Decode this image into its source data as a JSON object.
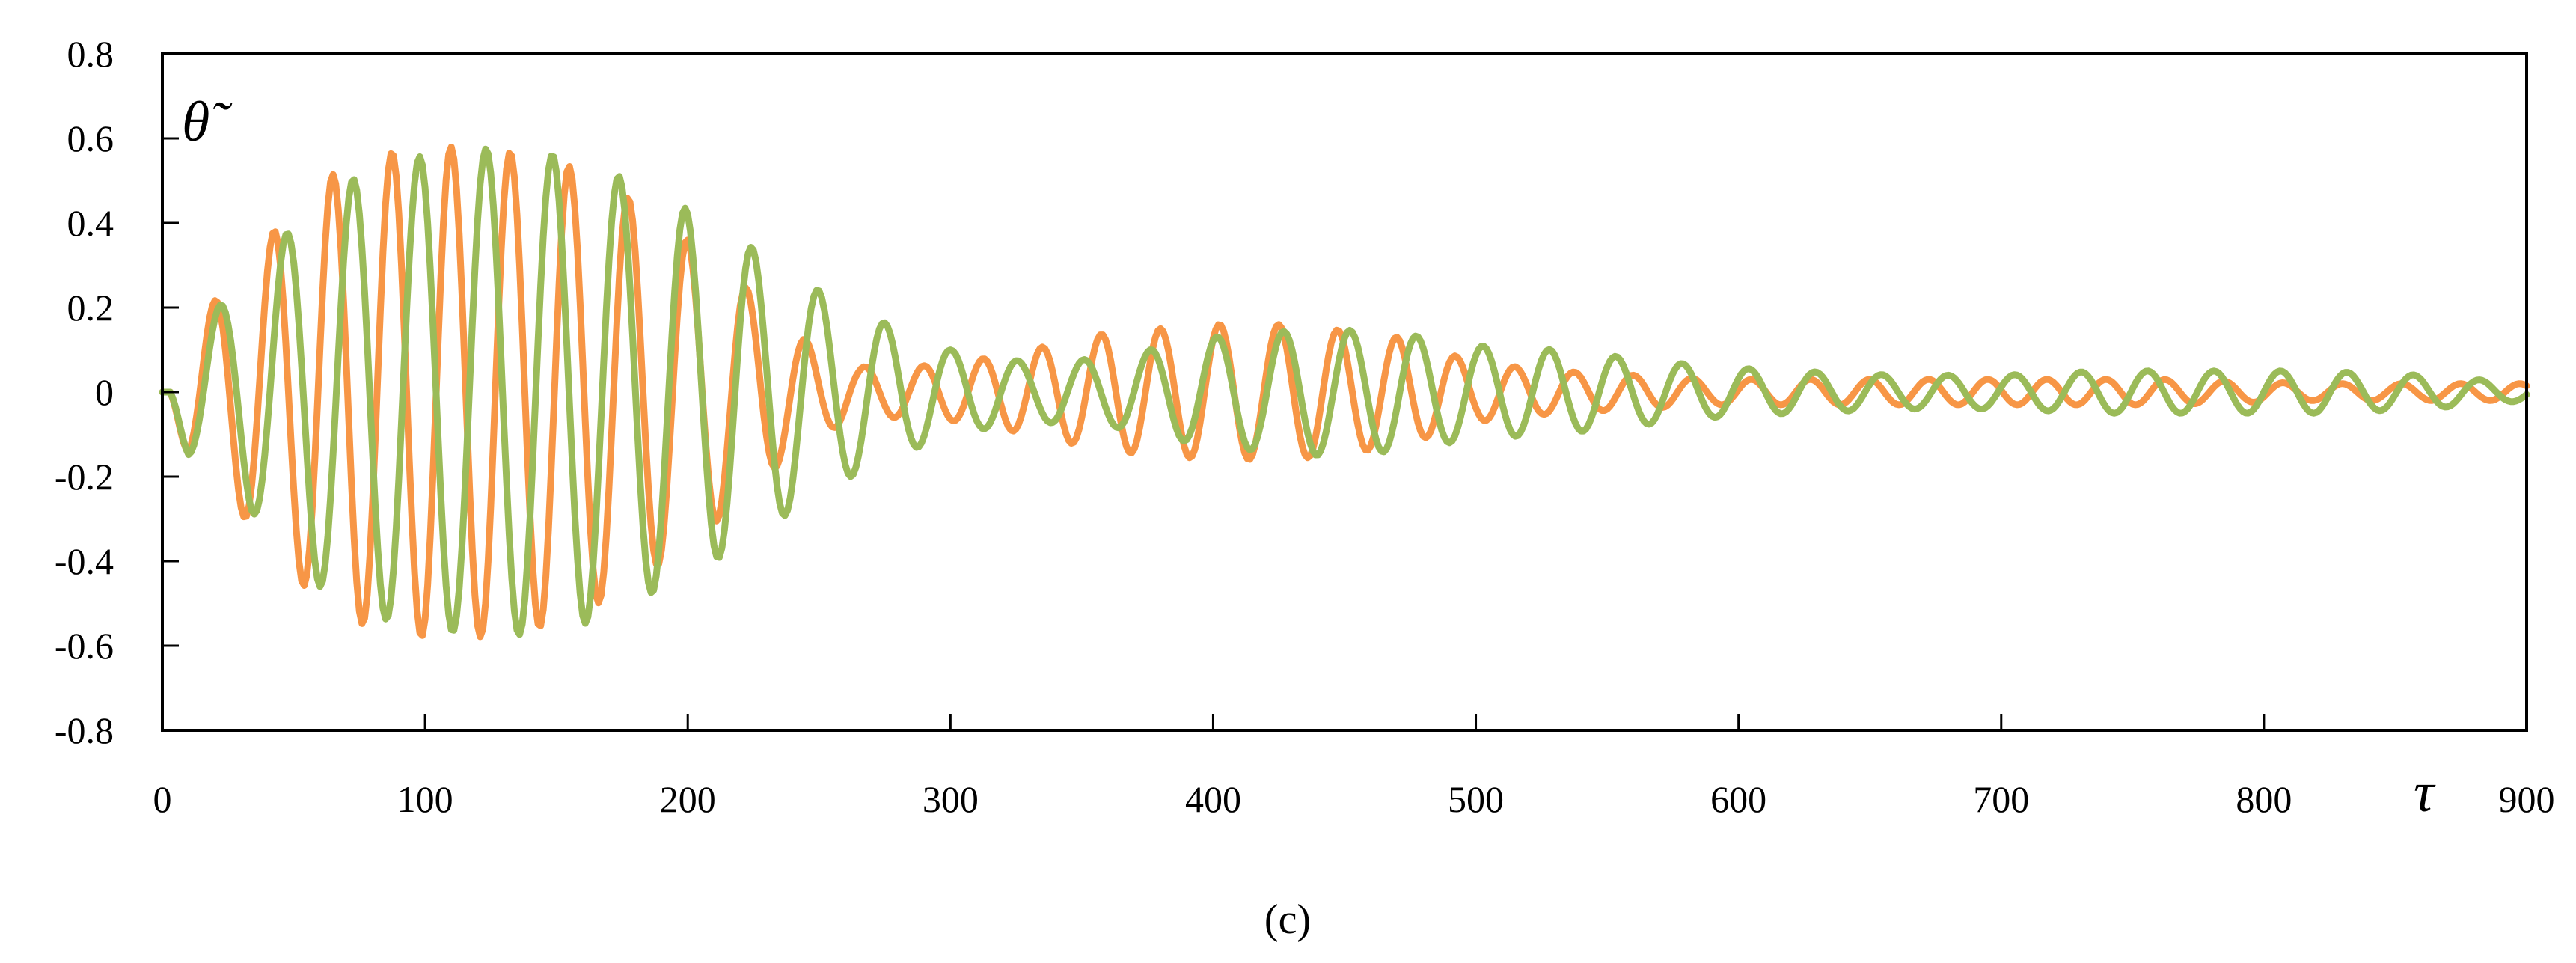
{
  "chart_data": {
    "type": "line",
    "title": "",
    "xlabel": "τ",
    "ylabel": "θ̃",
    "xlim": [
      0,
      900
    ],
    "ylim": [
      -0.8,
      0.8
    ],
    "x_ticks": [
      "0",
      "100",
      "200",
      "300",
      "400",
      "500",
      "600",
      "700",
      "800",
      "900"
    ],
    "y_ticks": [
      "0.8",
      "0.6",
      "0.4",
      "0.2",
      "0",
      "-0.2",
      "-0.4",
      "-0.6",
      "-0.8"
    ],
    "grid": false,
    "legend": "none",
    "sample_step": 1,
    "series": [
      {
        "color": "#F79646",
        "period": 22.5,
        "phase_origin": 3,
        "envelope": {
          "x": [
            0,
            10,
            25,
            45,
            60,
            80,
            100,
            120,
            150,
            175,
            200,
            220,
            235,
            250,
            265,
            285,
            305,
            330,
            360,
            400,
            430,
            470,
            500,
            530,
            560,
            590,
            620,
            660,
            700,
            760,
            820,
            870,
            900
          ],
          "y": [
            0,
            0.15,
            0.25,
            0.4,
            0.5,
            0.56,
            0.58,
            0.58,
            0.55,
            0.47,
            0.36,
            0.26,
            0.17,
            0.1,
            0.06,
            0.06,
            0.07,
            0.1,
            0.14,
            0.16,
            0.16,
            0.13,
            0.07,
            0.05,
            0.04,
            0.03,
            0.03,
            0.03,
            0.03,
            0.03,
            0.02,
            0.02,
            0.02
          ]
        }
      },
      {
        "color": "#9BBB59",
        "period": 25.3,
        "phase_origin": 3,
        "envelope": {
          "x": [
            0,
            10,
            25,
            45,
            60,
            80,
            100,
            130,
            160,
            185,
            210,
            235,
            255,
            280,
            300,
            330,
            360,
            400,
            440,
            470,
            500,
            530,
            560,
            590,
            620,
            660,
            700,
            740,
            780,
            820,
            860,
            900
          ],
          "y": [
            0,
            0.15,
            0.22,
            0.36,
            0.46,
            0.53,
            0.56,
            0.58,
            0.55,
            0.48,
            0.4,
            0.3,
            0.22,
            0.15,
            0.1,
            0.07,
            0.08,
            0.13,
            0.15,
            0.14,
            0.11,
            0.1,
            0.08,
            0.06,
            0.05,
            0.04,
            0.04,
            0.05,
            0.05,
            0.05,
            0.04,
            0.02
          ]
        }
      }
    ]
  },
  "caption": "(c)"
}
